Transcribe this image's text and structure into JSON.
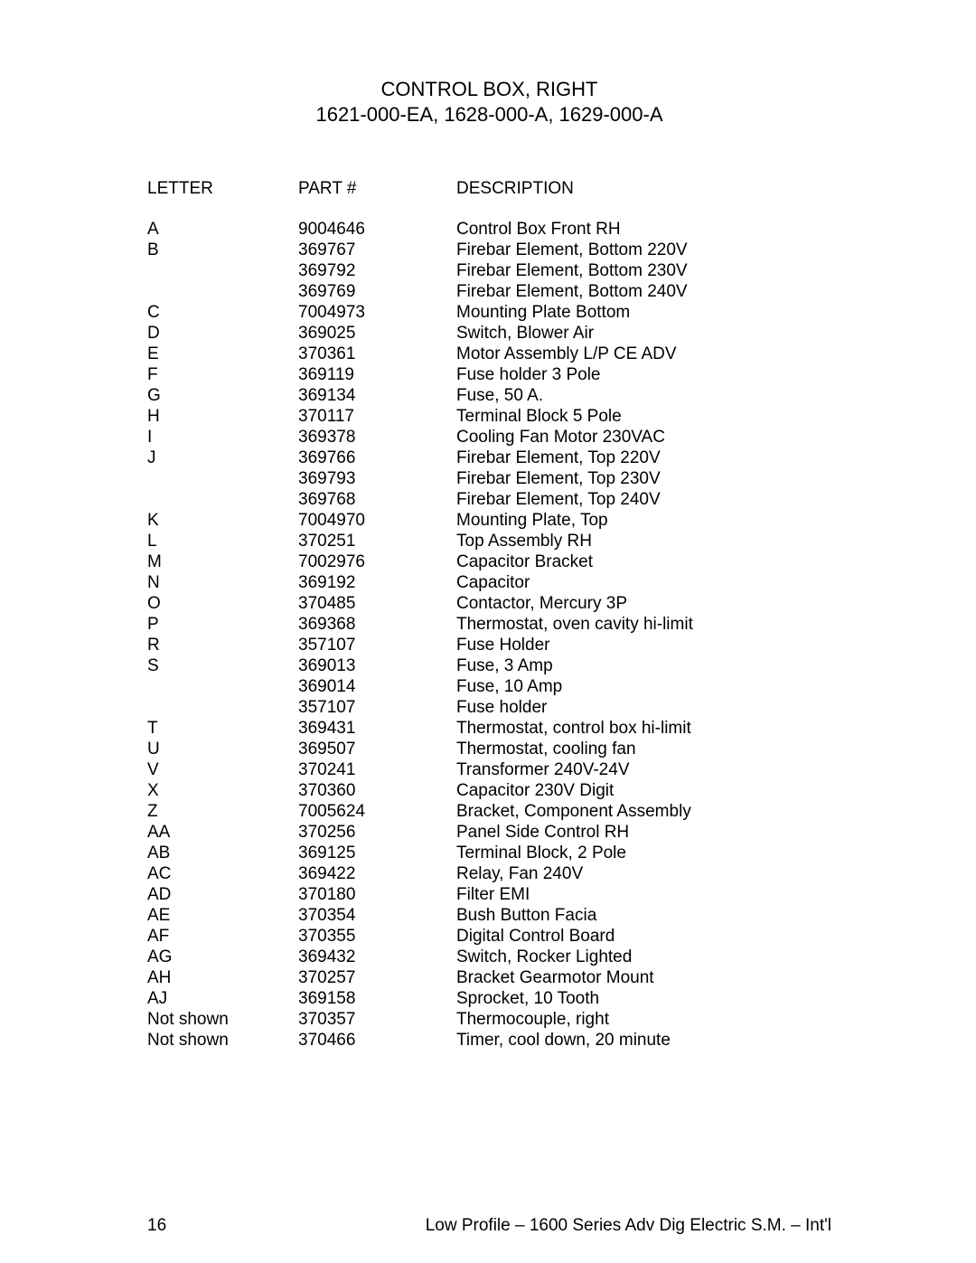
{
  "title": {
    "line1": "CONTROL BOX, RIGHT",
    "line2": "1621-000-EA, 1628-000-A, 1629-000-A"
  },
  "headers": {
    "letter": "LETTER",
    "part": "PART #",
    "description": "DESCRIPTION"
  },
  "rows": [
    {
      "letter": "A",
      "part": "9004646",
      "desc": "Control Box Front RH"
    },
    {
      "letter": "B",
      "part": "369767",
      "desc": "Firebar Element, Bottom 220V"
    },
    {
      "letter": "",
      "part": "369792",
      "desc": "Firebar Element, Bottom 230V"
    },
    {
      "letter": "",
      "part": "369769",
      "desc": "Firebar Element, Bottom 240V"
    },
    {
      "letter": "C",
      "part": "7004973",
      "desc": "Mounting Plate Bottom"
    },
    {
      "letter": "D",
      "part": "369025",
      "desc": "Switch, Blower Air"
    },
    {
      "letter": "E",
      "part": "370361",
      "desc": "Motor Assembly L/P CE ADV"
    },
    {
      "letter": "F",
      "part": "369119",
      "desc": "Fuse holder 3 Pole"
    },
    {
      "letter": "G",
      "part": "369134",
      "desc": "Fuse, 50 A."
    },
    {
      "letter": "H",
      "part": "370117",
      "desc": "Terminal Block 5 Pole"
    },
    {
      "letter": "I",
      "part": "369378",
      "desc": "Cooling Fan Motor 230VAC"
    },
    {
      "letter": "J",
      "part": "369766",
      "desc": "Firebar Element, Top 220V"
    },
    {
      "letter": "",
      "part": "369793",
      "desc": "Firebar Element, Top 230V"
    },
    {
      "letter": "",
      "part": "369768",
      "desc": "Firebar Element, Top 240V"
    },
    {
      "letter": "K",
      "part": "7004970",
      "desc": "Mounting Plate, Top"
    },
    {
      "letter": "L",
      "part": "370251",
      "desc": "Top Assembly RH"
    },
    {
      "letter": "M",
      "part": "7002976",
      "desc": "Capacitor Bracket"
    },
    {
      "letter": "N",
      "part": "369192",
      "desc": "Capacitor"
    },
    {
      "letter": "O",
      "part": "370485",
      "desc": "Contactor, Mercury 3P"
    },
    {
      "letter": "P",
      "part": "369368",
      "desc": "Thermostat, oven cavity hi-limit"
    },
    {
      "letter": "R",
      "part": "357107",
      "desc": "Fuse Holder"
    },
    {
      "letter": "S",
      "part": "369013",
      "desc": "Fuse, 3 Amp"
    },
    {
      "letter": "",
      "part": "369014",
      "desc": "Fuse, 10 Amp"
    },
    {
      "letter": "",
      "part": "357107",
      "desc": "Fuse holder"
    },
    {
      "letter": "T",
      "part": "369431",
      "desc": "Thermostat, control box hi-limit"
    },
    {
      "letter": "U",
      "part": "369507",
      "desc": "Thermostat, cooling fan"
    },
    {
      "letter": "V",
      "part": "370241",
      "desc": "Transformer 240V-24V"
    },
    {
      "letter": "X",
      "part": "370360",
      "desc": "Capacitor 230V Digit"
    },
    {
      "letter": "Z",
      "part": "7005624",
      "desc": "Bracket, Component Assembly"
    },
    {
      "letter": "AA",
      "part": "370256",
      "desc": "Panel Side Control RH"
    },
    {
      "letter": "AB",
      "part": "369125",
      "desc": "Terminal Block, 2 Pole"
    },
    {
      "letter": "AC",
      "part": "369422",
      "desc": "Relay, Fan 240V"
    },
    {
      "letter": "AD",
      "part": "370180",
      "desc": "Filter EMI"
    },
    {
      "letter": "AE",
      "part": "370354",
      "desc": "Bush Button Facia"
    },
    {
      "letter": "AF",
      "part": "370355",
      "desc": "Digital Control Board"
    },
    {
      "letter": "AG",
      "part": "369432",
      "desc": "Switch, Rocker Lighted"
    },
    {
      "letter": "AH",
      "part": "370257",
      "desc": "Bracket Gearmotor Mount"
    },
    {
      "letter": "AJ",
      "part": "369158",
      "desc": "Sprocket, 10 Tooth"
    },
    {
      "letter": "Not shown",
      "part": "370357",
      "desc": "Thermocouple, right"
    },
    {
      "letter": "Not shown",
      "part": "370466",
      "desc": "Timer, cool down, 20 minute"
    }
  ],
  "footer": {
    "page_number": "16",
    "doc_title": "Low Profile – 1600 Series Adv Dig Electric S.M. – Int'l"
  }
}
